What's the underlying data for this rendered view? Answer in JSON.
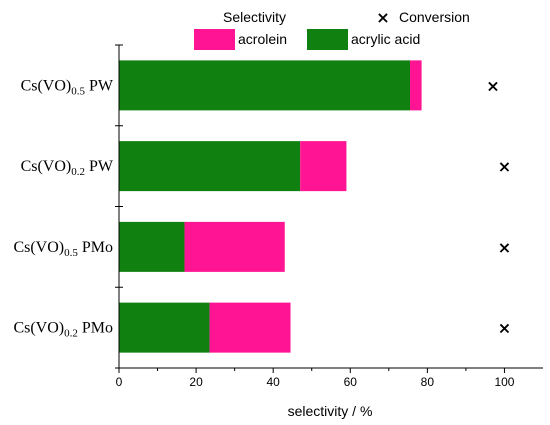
{
  "chart_data": {
    "type": "bar",
    "orientation": "horizontal",
    "stacked": true,
    "categories": [
      {
        "main": "Cs(VO)",
        "sub": "0.5",
        "suffix": " PW"
      },
      {
        "main": "Cs(VO)",
        "sub": "0.2",
        "suffix": " PW"
      },
      {
        "main": "Cs(VO)",
        "sub": "0.5",
        "suffix": " PMo"
      },
      {
        "main": "Cs(VO)",
        "sub": "0.2",
        "suffix": " PMo"
      }
    ],
    "series": [
      {
        "name": "acrylic acid",
        "color": "#108010",
        "values": [
          75.5,
          47,
          17,
          23.5
        ]
      },
      {
        "name": "acrolein",
        "color": "#ff1493",
        "values": [
          3,
          12,
          26,
          21
        ]
      }
    ],
    "conversion": {
      "name": "Conversion",
      "marker": "×",
      "values": [
        97,
        100,
        100,
        100
      ]
    },
    "legend": {
      "selectivity_title": "Selectivity",
      "conversion_title": "Conversion",
      "position": "top"
    },
    "xlabel": "selectivity / %",
    "xlim": [
      0,
      110
    ],
    "xticks": [
      0,
      20,
      40,
      60,
      80,
      100
    ],
    "grid": false
  }
}
